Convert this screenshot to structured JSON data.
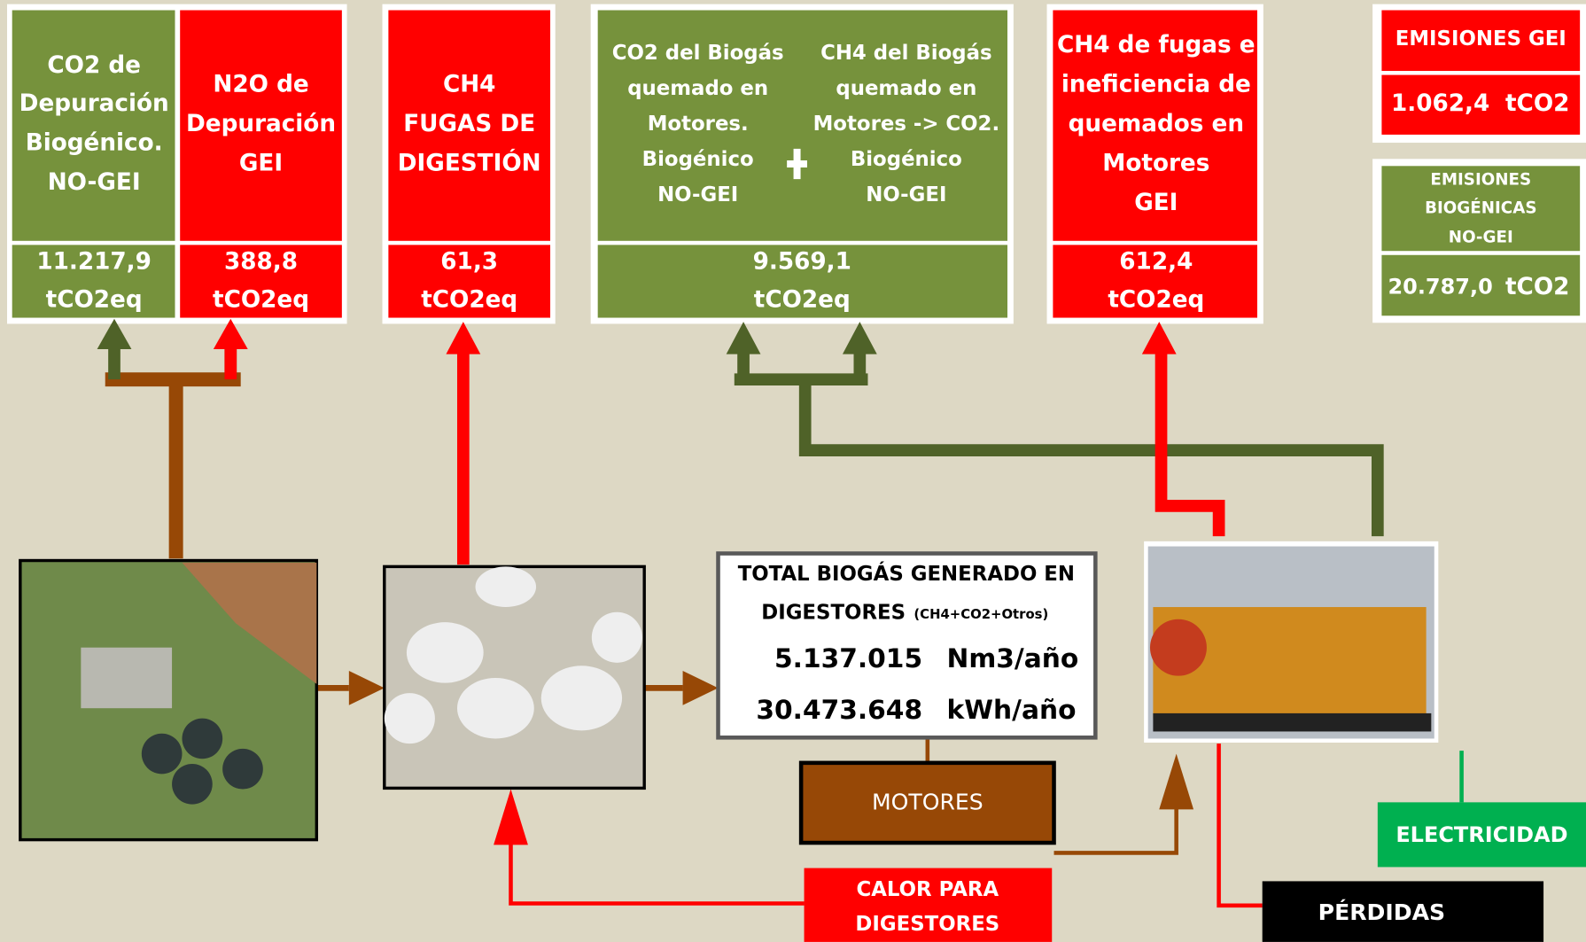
{
  "emission_boxes": [
    {
      "lines": [
        "CO2 de",
        "Depuración",
        "Biogénico.",
        "NO-GEI"
      ],
      "value": "11.217,9",
      "unit": "tCO2eq"
    },
    {
      "lines": [
        "N2O de",
        "Depuración",
        "GEI"
      ],
      "value": "388,8",
      "unit": "tCO2eq"
    },
    {
      "lines": [
        "CH4",
        "FUGAS DE",
        "DIGESTIÓN"
      ],
      "value": "61,3",
      "unit": "tCO2eq"
    },
    {
      "lines_left": [
        "CO2 del Biogás",
        "quemado en",
        "Motores.",
        "Biogénico",
        "NO-GEI"
      ],
      "lines_right": [
        "CH4 del Biogás",
        "quemado en",
        "Motores -> CO2.",
        "Biogénico",
        "NO-GEI"
      ],
      "value": "9.569,1",
      "unit": "tCO2eq"
    },
    {
      "lines": [
        "CH4 de fugas e",
        "ineficiencia de",
        "quemados en",
        "Motores",
        "GEI"
      ],
      "value": "612,4",
      "unit": "tCO2eq"
    }
  ],
  "emisiones_gei": {
    "title": "EMISIONES GEI",
    "value": "1.062,4",
    "unit": "tCO2"
  },
  "emisiones_biogenicas": {
    "title": [
      "EMISIONES",
      "BIOGÉNICAS",
      "NO-GEI"
    ],
    "value": "20.787,0",
    "unit": "tCO2"
  },
  "biogas": {
    "title": [
      "TOTAL BIOGÁS GENERADO EN",
      "DIGESTORES"
    ],
    "note": "(CH4+CO2+Otros)",
    "rows": [
      {
        "value": "5.137.015",
        "unit": "Nm3/año"
      },
      {
        "value": "30.473.648",
        "unit": "kWh/año"
      }
    ]
  },
  "motores": "MOTORES",
  "calor": [
    "CALOR PARA",
    "DIGESTORES"
  ],
  "electricidad": "ELECTRICIDAD",
  "perdidas": "PÉRDIDAS"
}
